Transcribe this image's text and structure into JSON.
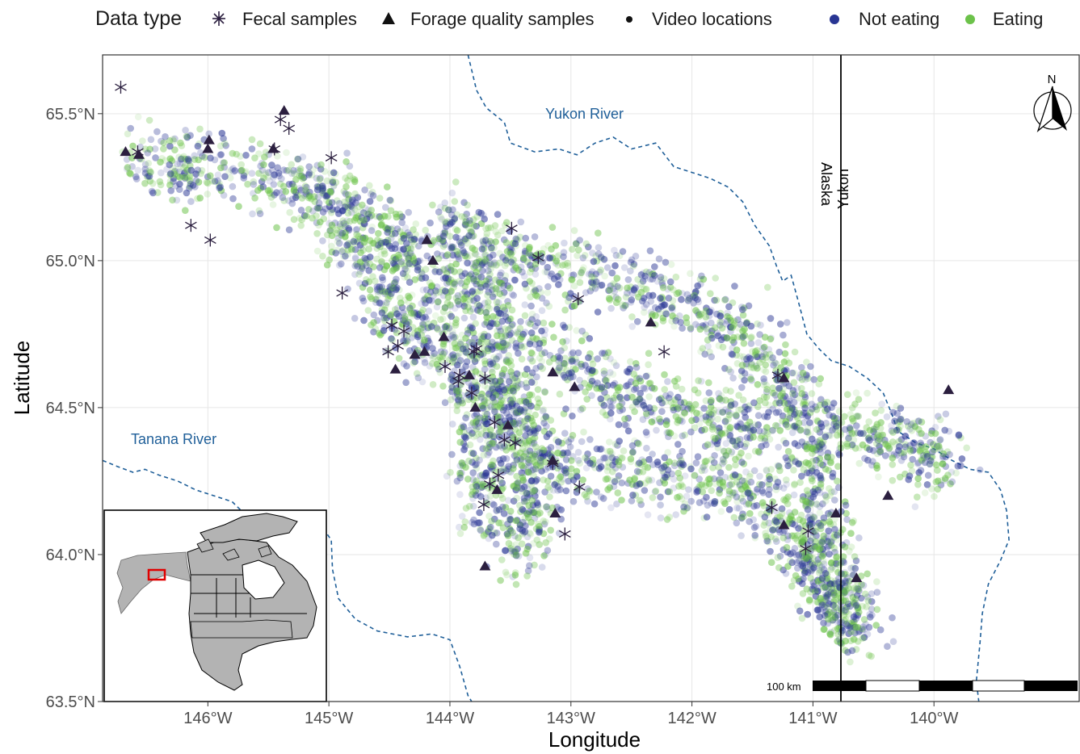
{
  "legend": {
    "title": "Data type",
    "items": [
      {
        "label": "Fecal samples",
        "symbol": "asterisk"
      },
      {
        "label": "Forage quality samples",
        "symbol": "triangle"
      },
      {
        "label": "Video locations",
        "symbol": "dot"
      },
      {
        "label": "Not eating",
        "symbol": "dot",
        "color": "#283593"
      },
      {
        "label": "Eating",
        "symbol": "dot",
        "color": "#6cc24a"
      }
    ]
  },
  "axes": {
    "xlabel": "Longitude",
    "ylabel": "Latitude",
    "xticks": [
      {
        "value": -146,
        "label": "146°W"
      },
      {
        "value": -145,
        "label": "145°W"
      },
      {
        "value": -144,
        "label": "144°W"
      },
      {
        "value": -143,
        "label": "143°W"
      },
      {
        "value": -142,
        "label": "142°W"
      },
      {
        "value": -141,
        "label": "141°W"
      },
      {
        "value": -140,
        "label": "140°W"
      }
    ],
    "yticks": [
      {
        "value": 63.5,
        "label": "63.5°N"
      },
      {
        "value": 64.0,
        "label": "64.0°N"
      },
      {
        "value": 64.5,
        "label": "64.5°N"
      },
      {
        "value": 65.0,
        "label": "65.0°N"
      },
      {
        "value": 65.5,
        "label": "65.5°N"
      }
    ],
    "xlim": [
      -146.87,
      -138.8
    ],
    "ylim": [
      63.5,
      65.7
    ]
  },
  "labels": {
    "yukon_river": "Yukon River",
    "tanana_river": "Tanana River",
    "alaska": "Alaska",
    "yukon": "Yukon",
    "north": "N",
    "scale": "100 km"
  },
  "colors": {
    "fecal": "#2b1f3f",
    "forage": "#2b1f3f",
    "not_eating": "#283593",
    "eating": "#6cc24a",
    "river": "#1f5f99",
    "inset_land": "#b3b3b3",
    "inset_highlight": "#e00000"
  },
  "fecal_samples": [
    [
      -146.72,
      65.59
    ],
    [
      -146.58,
      65.37
    ],
    [
      -146.14,
      65.12
    ],
    [
      -145.98,
      65.07
    ],
    [
      -145.45,
      65.38
    ],
    [
      -145.4,
      65.48
    ],
    [
      -145.33,
      65.45
    ],
    [
      -144.98,
      65.35
    ],
    [
      -144.89,
      64.89
    ],
    [
      -144.48,
      64.78
    ],
    [
      -144.38,
      64.76
    ],
    [
      -144.43,
      64.71
    ],
    [
      -144.51,
      64.69
    ],
    [
      -144.04,
      64.64
    ],
    [
      -143.93,
      64.59
    ],
    [
      -143.92,
      64.61
    ],
    [
      -143.8,
      64.69
    ],
    [
      -143.78,
      64.7
    ],
    [
      -143.71,
      64.6
    ],
    [
      -143.82,
      64.55
    ],
    [
      -143.63,
      64.45
    ],
    [
      -143.55,
      64.39
    ],
    [
      -143.46,
      64.38
    ],
    [
      -143.6,
      64.27
    ],
    [
      -143.67,
      64.24
    ],
    [
      -143.72,
      64.17
    ],
    [
      -143.49,
      65.11
    ],
    [
      -143.27,
      65.01
    ],
    [
      -142.94,
      64.87
    ],
    [
      -142.23,
      64.69
    ],
    [
      -143.15,
      64.31
    ],
    [
      -142.93,
      64.23
    ],
    [
      -143.05,
      64.07
    ],
    [
      -141.29,
      64.61
    ],
    [
      -141.34,
      64.16
    ],
    [
      -141.04,
      64.08
    ],
    [
      -141.06,
      64.02
    ]
  ],
  "forage_samples": [
    [
      -146.68,
      65.37
    ],
    [
      -146.57,
      65.36
    ],
    [
      -145.99,
      65.41
    ],
    [
      -146.0,
      65.38
    ],
    [
      -145.37,
      65.51
    ],
    [
      -145.46,
      65.38
    ],
    [
      -144.19,
      65.07
    ],
    [
      -144.14,
      65.0
    ],
    [
      -144.05,
      64.74
    ],
    [
      -144.21,
      64.69
    ],
    [
      -144.29,
      64.68
    ],
    [
      -144.45,
      64.63
    ],
    [
      -143.84,
      64.61
    ],
    [
      -143.79,
      64.5
    ],
    [
      -143.52,
      64.44
    ],
    [
      -143.61,
      64.22
    ],
    [
      -143.15,
      64.62
    ],
    [
      -142.97,
      64.57
    ],
    [
      -143.15,
      64.32
    ],
    [
      -143.13,
      64.14
    ],
    [
      -143.71,
      63.96
    ],
    [
      -142.34,
      64.79
    ],
    [
      -141.24,
      64.6
    ],
    [
      -141.24,
      64.1
    ],
    [
      -140.81,
      64.14
    ],
    [
      -140.64,
      63.92
    ],
    [
      -140.38,
      64.2
    ],
    [
      -139.88,
      64.56
    ]
  ],
  "rivers": {
    "yukon": [
      [
        -143.85,
        65.7
      ],
      [
        -143.78,
        65.58
      ],
      [
        -143.7,
        65.52
      ],
      [
        -143.55,
        65.47
      ],
      [
        -143.5,
        65.4
      ],
      [
        -143.3,
        65.37
      ],
      [
        -143.1,
        65.38
      ],
      [
        -142.95,
        65.36
      ],
      [
        -142.8,
        65.4
      ],
      [
        -142.65,
        65.42
      ],
      [
        -142.5,
        65.38
      ],
      [
        -142.3,
        65.4
      ],
      [
        -142.15,
        65.32
      ],
      [
        -142.0,
        65.3
      ],
      [
        -141.85,
        65.28
      ],
      [
        -141.7,
        65.25
      ],
      [
        -141.58,
        65.2
      ],
      [
        -141.48,
        65.12
      ],
      [
        -141.36,
        65.05
      ],
      [
        -141.3,
        64.98
      ],
      [
        -141.25,
        64.93
      ],
      [
        -141.18,
        64.95
      ],
      [
        -141.12,
        64.86
      ],
      [
        -141.05,
        64.75
      ],
      [
        -140.95,
        64.7
      ],
      [
        -140.85,
        64.66
      ],
      [
        -140.7,
        64.64
      ],
      [
        -140.55,
        64.6
      ],
      [
        -140.42,
        64.55
      ],
      [
        -140.35,
        64.48
      ],
      [
        -140.3,
        64.42
      ],
      [
        -140.15,
        64.38
      ],
      [
        -140.0,
        64.36
      ],
      [
        -139.85,
        64.32
      ],
      [
        -139.7,
        64.29
      ],
      [
        -139.55,
        64.28
      ],
      [
        -139.45,
        64.22
      ],
      [
        -139.4,
        64.15
      ],
      [
        -139.38,
        64.05
      ],
      [
        -139.45,
        63.98
      ],
      [
        -139.55,
        63.9
      ],
      [
        -139.6,
        63.8
      ],
      [
        -139.62,
        63.7
      ],
      [
        -139.65,
        63.57
      ],
      [
        -139.63,
        63.5
      ]
    ],
    "tanana": [
      [
        -146.87,
        64.32
      ],
      [
        -146.75,
        64.3
      ],
      [
        -146.62,
        64.28
      ],
      [
        -146.52,
        64.29
      ],
      [
        -146.4,
        64.27
      ],
      [
        -146.25,
        64.25
      ],
      [
        -146.1,
        64.22
      ],
      [
        -145.95,
        64.2
      ],
      [
        -145.8,
        64.18
      ],
      [
        -145.65,
        64.12
      ],
      [
        -145.5,
        64.1
      ],
      [
        -145.32,
        64.08
      ],
      [
        -145.15,
        64.07
      ],
      [
        -145.05,
        64.09
      ],
      [
        -144.98,
        64.05
      ],
      [
        -144.97,
        63.95
      ],
      [
        -144.92,
        63.85
      ],
      [
        -144.78,
        63.78
      ],
      [
        -144.6,
        63.74
      ],
      [
        -144.35,
        63.72
      ],
      [
        -144.15,
        63.73
      ],
      [
        -144.0,
        63.71
      ],
      [
        -143.92,
        63.62
      ],
      [
        -143.85,
        63.52
      ],
      [
        -143.82,
        63.5
      ]
    ]
  }
}
